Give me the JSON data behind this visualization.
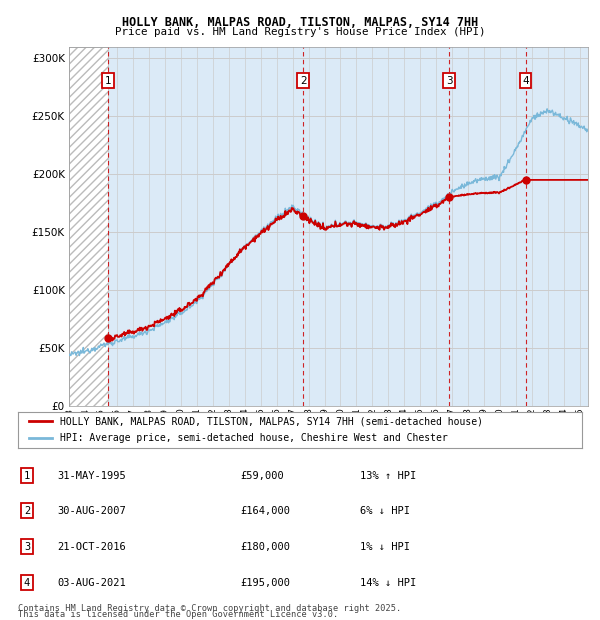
{
  "title1": "HOLLY BANK, MALPAS ROAD, TILSTON, MALPAS, SY14 7HH",
  "title2": "Price paid vs. HM Land Registry's House Price Index (HPI)",
  "ylim": [
    0,
    310000
  ],
  "yticks": [
    0,
    50000,
    100000,
    150000,
    200000,
    250000,
    300000
  ],
  "ytick_labels": [
    "£0",
    "£50K",
    "£100K",
    "£150K",
    "£200K",
    "£250K",
    "£300K"
  ],
  "sale_dates_num": [
    1995.42,
    2007.66,
    2016.8,
    2021.59
  ],
  "sale_prices": [
    59000,
    164000,
    180000,
    195000
  ],
  "sale_labels": [
    "1",
    "2",
    "3",
    "4"
  ],
  "sale_info": [
    {
      "num": "1",
      "date": "31-MAY-1995",
      "price": "£59,000",
      "hpi": "13% ↑ HPI"
    },
    {
      "num": "2",
      "date": "30-AUG-2007",
      "price": "£164,000",
      "hpi": "6% ↓ HPI"
    },
    {
      "num": "3",
      "date": "21-OCT-2016",
      "price": "£180,000",
      "hpi": "1% ↓ HPI"
    },
    {
      "num": "4",
      "date": "03-AUG-2021",
      "price": "£195,000",
      "hpi": "14% ↓ HPI"
    }
  ],
  "hpi_color": "#7ab8d9",
  "price_color": "#cc0000",
  "grid_color": "#cccccc",
  "bg_color": "#dbeaf7",
  "hatch_bg": "#f0f0f0",
  "legend_line1": "HOLLY BANK, MALPAS ROAD, TILSTON, MALPAS, SY14 7HH (semi-detached house)",
  "legend_line2": "HPI: Average price, semi-detached house, Cheshire West and Chester",
  "footnote1": "Contains HM Land Registry data © Crown copyright and database right 2025.",
  "footnote2": "This data is licensed under the Open Government Licence v3.0.",
  "xstart": 1993.0,
  "xend": 2025.5
}
